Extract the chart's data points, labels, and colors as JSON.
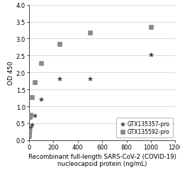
{
  "title": "",
  "xlabel_line1": "Recombinant full-length SARS-CoV-2 (COVID-19)",
  "xlabel_line2": "nucleocapsid protein (ng/mL)",
  "ylabel": "OD 450",
  "xlim": [
    0,
    1200
  ],
  "ylim": [
    0,
    4
  ],
  "yticks": [
    0,
    0.5,
    1.0,
    1.5,
    2.0,
    2.5,
    3.0,
    3.5,
    4.0
  ],
  "xticks": [
    0,
    200,
    400,
    600,
    800,
    1000,
    1200
  ],
  "series1_label": "GTX135357-pro",
  "series2_label": "GTX135592-pro",
  "series1_x": [
    1.6,
    3.1,
    6.25,
    12.5,
    25,
    50,
    100,
    250,
    500,
    1000
  ],
  "series1_y": [
    0.1,
    0.18,
    0.25,
    0.38,
    0.45,
    0.72,
    1.22,
    1.82,
    1.82,
    2.52
  ],
  "series2_x": [
    1.6,
    3.1,
    6.25,
    12.5,
    25,
    50,
    100,
    250,
    500,
    1000
  ],
  "series2_y": [
    0.15,
    0.3,
    0.68,
    0.75,
    1.28,
    1.72,
    2.28,
    2.85,
    3.18,
    3.35
  ],
  "marker1": "*",
  "marker2": "s",
  "color1": "#404040",
  "color2": "#888888",
  "background_color": "#ffffff",
  "grid_color": "#cccccc",
  "legend_fontsize": 5.5,
  "axis_fontsize": 6.5,
  "tick_fontsize": 6.0,
  "xlabel_fontsize": 6.2
}
